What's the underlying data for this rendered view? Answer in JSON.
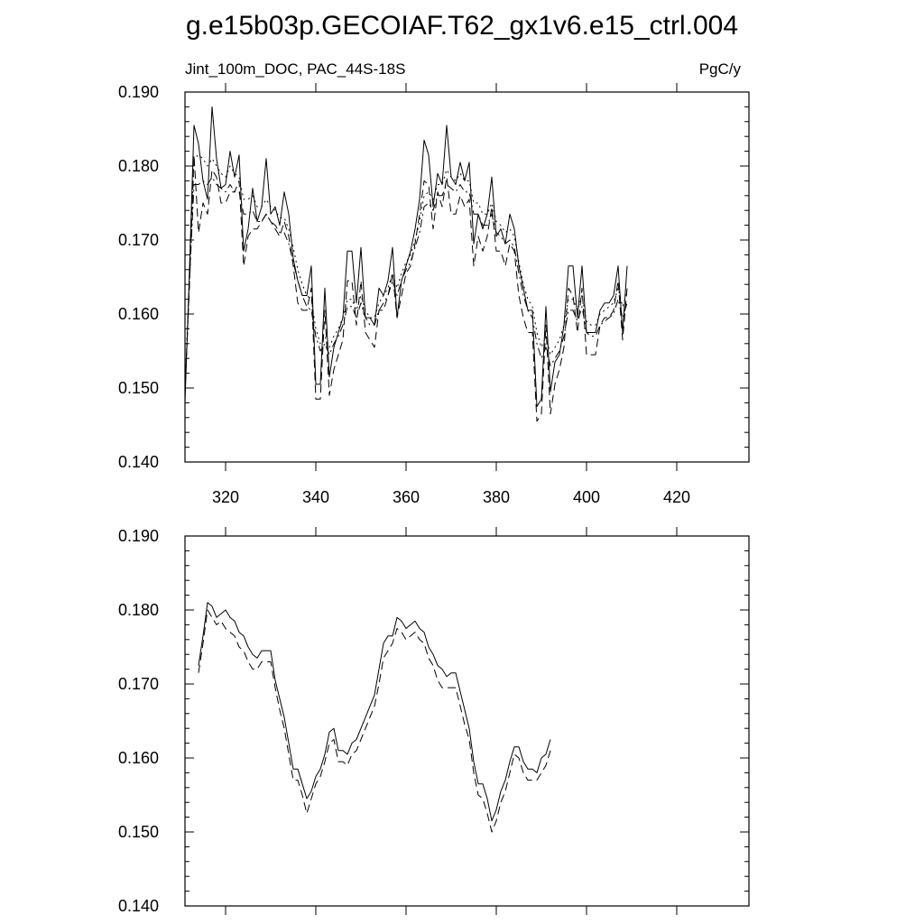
{
  "title": "g.e15b03p.GECOIAF.T62_gx1v6.e15_ctrl.004",
  "chart_data": [
    {
      "type": "line",
      "variable_label": "Jint_100m_DOC, PAC_44S-18S",
      "units_label": "PgC/y",
      "xlim": [
        311,
        436
      ],
      "ylim": [
        0.14,
        0.19
      ],
      "x_ticks": [
        320,
        340,
        360,
        380,
        400,
        420
      ],
      "x_tick_labels": [
        "320",
        "340",
        "360",
        "380",
        "400",
        "420"
      ],
      "y_ticks": [
        0.14,
        0.15,
        0.16,
        0.17,
        0.18,
        0.19
      ],
      "y_tick_labels": [
        "0.140",
        "0.150",
        "0.160",
        "0.170",
        "0.180",
        "0.190"
      ],
      "x_start": 311,
      "series": [
        {
          "dash": "solid",
          "values": [
            0.148,
            0.166,
            0.1855,
            0.183,
            0.178,
            0.1755,
            0.188,
            0.181,
            0.177,
            0.1775,
            0.182,
            0.1785,
            0.1815,
            0.1685,
            0.1715,
            0.177,
            0.1725,
            0.1745,
            0.181,
            0.1735,
            0.1745,
            0.172,
            0.1765,
            0.1735,
            0.1675,
            0.1645,
            0.1625,
            0.1625,
            0.1665,
            0.1505,
            0.1505,
            0.1635,
            0.1515,
            0.1555,
            0.1575,
            0.1595,
            0.1685,
            0.1685,
            0.1615,
            0.169,
            0.1595,
            0.1595,
            0.1585,
            0.1635,
            0.1625,
            0.1645,
            0.169,
            0.1595,
            0.1645,
            0.1665,
            0.1685,
            0.1715,
            0.1755,
            0.1835,
            0.1815,
            0.1745,
            0.179,
            0.1775,
            0.1855,
            0.1785,
            0.1775,
            0.1805,
            0.178,
            0.1805,
            0.1695,
            0.1735,
            0.1715,
            0.1735,
            0.1785,
            0.1705,
            0.1715,
            0.1695,
            0.1735,
            0.1715,
            0.1665,
            0.1635,
            0.1605,
            0.1605,
            0.1475,
            0.1485,
            0.161,
            0.1495,
            0.1535,
            0.1545,
            0.1585,
            0.1665,
            0.1665,
            0.1595,
            0.1665,
            0.1575,
            0.1575,
            0.1575,
            0.1605,
            0.1615,
            0.1615,
            0.1625,
            0.1665,
            0.1575,
            0.1665
          ]
        },
        {
          "dash": "dashed",
          "values": [
            0.1495,
            0.164,
            0.1815,
            0.171,
            0.175,
            0.1735,
            0.1795,
            0.1785,
            0.175,
            0.175,
            0.1765,
            0.1765,
            0.178,
            0.1665,
            0.1705,
            0.1715,
            0.1715,
            0.1725,
            0.1735,
            0.1725,
            0.1715,
            0.1705,
            0.1725,
            0.1705,
            0.1665,
            0.1615,
            0.1605,
            0.1605,
            0.1635,
            0.1485,
            0.1485,
            0.1605,
            0.149,
            0.1525,
            0.1545,
            0.1565,
            0.1645,
            0.1645,
            0.1585,
            0.1645,
            0.1575,
            0.1565,
            0.1555,
            0.1605,
            0.1605,
            0.1625,
            0.1655,
            0.1595,
            0.1625,
            0.1655,
            0.1665,
            0.1695,
            0.1735,
            0.178,
            0.1775,
            0.1715,
            0.1765,
            0.1745,
            0.1785,
            0.1735,
            0.1735,
            0.176,
            0.1745,
            0.1755,
            0.1665,
            0.1705,
            0.1685,
            0.1705,
            0.1745,
            0.1685,
            0.1685,
            0.1665,
            0.1695,
            0.1685,
            0.1625,
            0.1595,
            0.1575,
            0.1575,
            0.1455,
            0.1465,
            0.1585,
            0.1465,
            0.1505,
            0.1525,
            0.1555,
            0.1635,
            0.1625,
            0.1575,
            0.1635,
            0.1545,
            0.1545,
            0.1545,
            0.1585,
            0.1595,
            0.1595,
            0.1605,
            0.1645,
            0.1565,
            0.1635
          ]
        },
        {
          "dash": "dotted",
          "values": [
            0.15,
            0.165,
            0.181,
            0.1815,
            0.181,
            0.18,
            0.181,
            0.18,
            0.179,
            0.1785,
            0.18,
            0.179,
            0.1785,
            0.1755,
            0.1755,
            0.176,
            0.1745,
            0.1745,
            0.1755,
            0.1745,
            0.174,
            0.173,
            0.173,
            0.1715,
            0.169,
            0.166,
            0.164,
            0.1625,
            0.162,
            0.158,
            0.156,
            0.157,
            0.1555,
            0.157,
            0.158,
            0.1595,
            0.162,
            0.162,
            0.1605,
            0.1625,
            0.1605,
            0.1595,
            0.1595,
            0.1615,
            0.1625,
            0.1635,
            0.1655,
            0.1635,
            0.1655,
            0.167,
            0.168,
            0.17,
            0.1725,
            0.176,
            0.1765,
            0.1755,
            0.1775,
            0.1775,
            0.1795,
            0.1785,
            0.178,
            0.179,
            0.178,
            0.178,
            0.175,
            0.175,
            0.1735,
            0.1735,
            0.175,
            0.1725,
            0.172,
            0.171,
            0.1715,
            0.1705,
            0.167,
            0.164,
            0.162,
            0.161,
            0.1575,
            0.1555,
            0.157,
            0.1545,
            0.1555,
            0.1565,
            0.1585,
            0.162,
            0.162,
            0.1605,
            0.1625,
            0.159,
            0.1585,
            0.1585,
            0.16,
            0.1605,
            0.161,
            0.1615,
            0.1635,
            0.161,
            0.163
          ]
        },
        {
          "dash": "dashdot",
          "values": [
            0.1495,
            0.1645,
            0.1775,
            0.1775,
            0.178,
            0.1775,
            0.1785,
            0.1775,
            0.177,
            0.1765,
            0.1775,
            0.1765,
            0.1765,
            0.1735,
            0.1735,
            0.174,
            0.1725,
            0.1725,
            0.1735,
            0.1725,
            0.172,
            0.171,
            0.171,
            0.1695,
            0.167,
            0.1645,
            0.1625,
            0.161,
            0.1605,
            0.157,
            0.155,
            0.156,
            0.1545,
            0.156,
            0.157,
            0.1585,
            0.161,
            0.161,
            0.1595,
            0.1615,
            0.1595,
            0.1585,
            0.1585,
            0.1605,
            0.1615,
            0.1625,
            0.1645,
            0.1625,
            0.1645,
            0.166,
            0.167,
            0.169,
            0.171,
            0.1745,
            0.175,
            0.174,
            0.176,
            0.176,
            0.1775,
            0.177,
            0.1765,
            0.1775,
            0.1765,
            0.1765,
            0.1735,
            0.1735,
            0.172,
            0.172,
            0.1735,
            0.171,
            0.1705,
            0.1695,
            0.17,
            0.169,
            0.1655,
            0.1625,
            0.1605,
            0.1595,
            0.156,
            0.154,
            0.1555,
            0.153,
            0.154,
            0.155,
            0.157,
            0.1605,
            0.1605,
            0.159,
            0.161,
            0.1575,
            0.157,
            0.157,
            0.1585,
            0.159,
            0.1595,
            0.16,
            0.162,
            0.1595,
            0.1615
          ]
        }
      ]
    },
    {
      "type": "line",
      "xlim": [
        311,
        436
      ],
      "ylim": [
        0.14,
        0.19
      ],
      "x_ticks": [
        320,
        340,
        360,
        380,
        400,
        420
      ],
      "y_ticks": [
        0.14,
        0.15,
        0.16,
        0.17,
        0.18,
        0.19
      ],
      "y_tick_labels": [
        "0.140",
        "0.150",
        "0.160",
        "0.170",
        "0.180",
        "0.190"
      ],
      "x_start": 314,
      "series": [
        {
          "dash": "solid",
          "values": [
            0.1725,
            0.1765,
            0.181,
            0.1805,
            0.179,
            0.1795,
            0.18,
            0.179,
            0.1785,
            0.177,
            0.1765,
            0.175,
            0.174,
            0.1735,
            0.1745,
            0.1745,
            0.1745,
            0.1705,
            0.168,
            0.1655,
            0.162,
            0.1585,
            0.1585,
            0.1565,
            0.1545,
            0.1555,
            0.1575,
            0.1585,
            0.1605,
            0.1635,
            0.164,
            0.161,
            0.161,
            0.1605,
            0.162,
            0.1625,
            0.164,
            0.1655,
            0.167,
            0.1685,
            0.172,
            0.1755,
            0.1765,
            0.1765,
            0.179,
            0.1785,
            0.1775,
            0.178,
            0.1785,
            0.1775,
            0.177,
            0.175,
            0.174,
            0.1725,
            0.172,
            0.171,
            0.1715,
            0.1715,
            0.169,
            0.1665,
            0.164,
            0.1595,
            0.1565,
            0.1565,
            0.1545,
            0.1515,
            0.153,
            0.1555,
            0.157,
            0.1595,
            0.1615,
            0.1615,
            0.1595,
            0.1585,
            0.1585,
            0.158,
            0.16,
            0.1605,
            0.1625
          ]
        },
        {
          "dash": "dashed",
          "values": [
            0.1715,
            0.1755,
            0.18,
            0.179,
            0.178,
            0.1785,
            0.1775,
            0.177,
            0.1765,
            0.175,
            0.1745,
            0.173,
            0.172,
            0.172,
            0.173,
            0.173,
            0.173,
            0.1695,
            0.1665,
            0.164,
            0.1605,
            0.157,
            0.157,
            0.155,
            0.1525,
            0.1545,
            0.1565,
            0.1575,
            0.1595,
            0.162,
            0.1625,
            0.1595,
            0.1595,
            0.159,
            0.1605,
            0.161,
            0.1625,
            0.164,
            0.1655,
            0.167,
            0.17,
            0.1735,
            0.1745,
            0.1755,
            0.1775,
            0.177,
            0.176,
            0.1765,
            0.177,
            0.176,
            0.1755,
            0.1735,
            0.1725,
            0.1705,
            0.1695,
            0.1695,
            0.1695,
            0.1695,
            0.167,
            0.1645,
            0.1625,
            0.158,
            0.155,
            0.1545,
            0.1525,
            0.15,
            0.1515,
            0.154,
            0.1555,
            0.158,
            0.1605,
            0.16,
            0.158,
            0.157,
            0.157,
            0.157,
            0.158,
            0.159,
            0.161
          ]
        }
      ]
    }
  ]
}
